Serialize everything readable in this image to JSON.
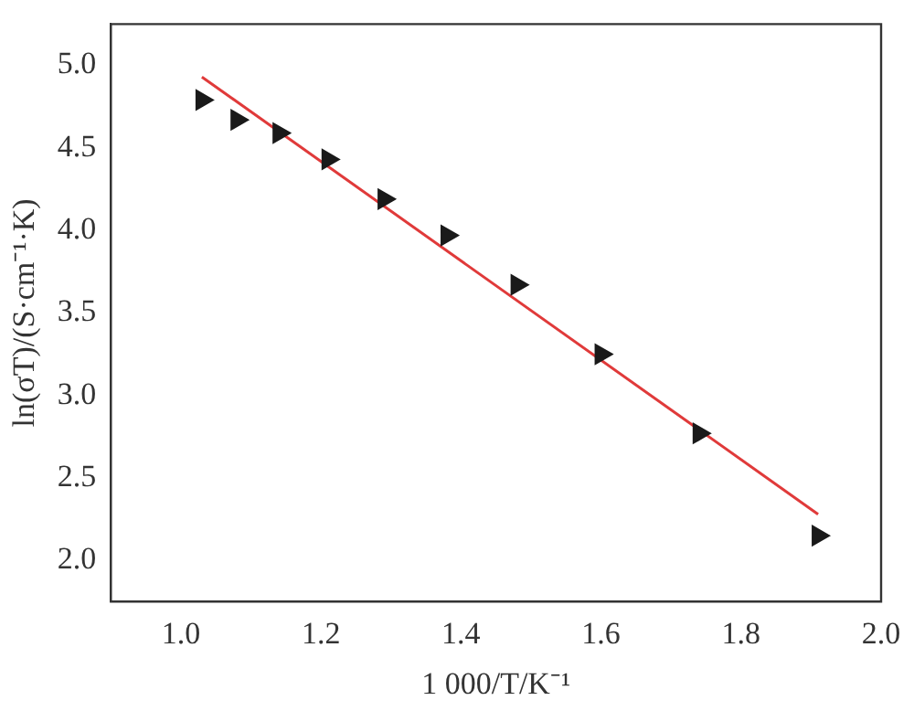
{
  "chart_data": {
    "type": "scatter",
    "xlabel": "1 000/T/K⁻¹",
    "ylabel": "ln(σT)/(S·cm⁻¹·K)",
    "xlim": [
      0.9,
      2.0
    ],
    "xticks": [
      {
        "value": 1.0,
        "label": "1.0"
      },
      {
        "value": 1.2,
        "label": "1.2"
      },
      {
        "value": 1.4,
        "label": "1.4"
      },
      {
        "value": 1.6,
        "label": "1.6"
      },
      {
        "value": 1.8,
        "label": "1.8"
      },
      {
        "value": 2.0,
        "label": "2.0"
      }
    ],
    "ylim": [
      1.75,
      5.25
    ],
    "yticks": [
      {
        "value": 2.0,
        "label": "2.0"
      },
      {
        "value": 2.5,
        "label": "2.5"
      },
      {
        "value": 3.0,
        "label": "3.0"
      },
      {
        "value": 3.5,
        "label": "3.5"
      },
      {
        "value": 4.0,
        "label": "4.0"
      },
      {
        "value": 4.5,
        "label": "4.5"
      },
      {
        "value": 5.0,
        "label": "5.0"
      }
    ],
    "grid": false,
    "legend": false,
    "series": [
      {
        "color": "#1a1a1a",
        "marker": "triangle",
        "x": [
          1.03,
          1.08,
          1.14,
          1.21,
          1.29,
          1.38,
          1.48,
          1.6,
          1.74,
          1.91
        ],
        "values": [
          4.79,
          4.67,
          4.59,
          4.43,
          4.19,
          3.97,
          3.67,
          3.25,
          2.77,
          2.15
        ]
      },
      {
        "type": "line",
        "color": "#e03a3a",
        "marker": "none",
        "line_style": "solid",
        "x": [
          1.03,
          1.91
        ],
        "values": [
          4.93,
          2.28
        ]
      }
    ]
  }
}
